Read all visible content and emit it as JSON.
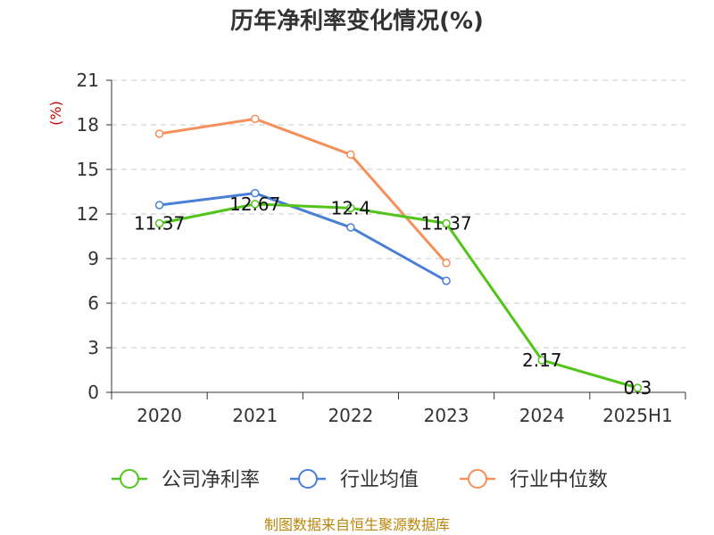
{
  "chart_data": {
    "type": "line",
    "title": "历年净利率变化情况(%)",
    "ylabel": "(%)",
    "categories": [
      "2020",
      "2021",
      "2022",
      "2023",
      "2024",
      "2025H1"
    ],
    "ylim": [
      0,
      21
    ],
    "yticks": [
      "0",
      "3",
      "6",
      "9",
      "12",
      "15",
      "18",
      "21"
    ],
    "grid": true,
    "legend_position": "bottom",
    "series": [
      {
        "name": "公司净利率",
        "color": "#52c41a",
        "values": [
          11.37,
          12.67,
          12.4,
          11.37,
          2.17,
          0.3
        ],
        "labels": [
          "11.37",
          "12.67",
          "12.4",
          "11.37",
          "2.17",
          "0.3"
        ]
      },
      {
        "name": "行业均值",
        "color": "#4a7fd8",
        "values": [
          12.6,
          13.4,
          11.1,
          7.5,
          null,
          null
        ]
      },
      {
        "name": "行业中位数",
        "color": "#f5905a",
        "values": [
          17.4,
          18.4,
          16.0,
          8.7,
          null,
          null
        ]
      }
    ],
    "source": "制图数据来自恒生聚源数据库"
  }
}
